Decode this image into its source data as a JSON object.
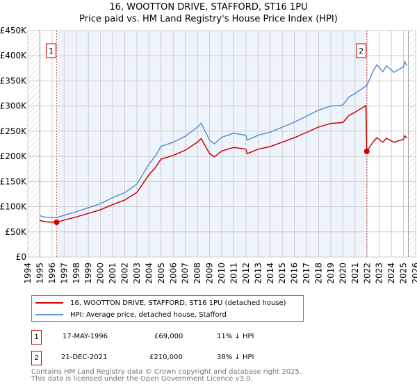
{
  "chart_data": {
    "type": "line",
    "title": "16, WOOTTON DRIVE, STAFFORD, ST16 1PU",
    "subtitle": "Price paid vs. HM Land Registry's House Price Index (HPI)",
    "xlim": [
      1994,
      2026
    ],
    "ylim": [
      0,
      450000
    ],
    "x_ticks": [
      "1994",
      "1995",
      "1996",
      "1997",
      "1998",
      "1999",
      "2000",
      "2001",
      "2002",
      "2003",
      "2004",
      "2005",
      "2006",
      "2007",
      "2008",
      "2009",
      "2010",
      "2011",
      "2012",
      "2013",
      "2014",
      "2015",
      "2016",
      "2017",
      "2018",
      "2019",
      "2020",
      "2021",
      "2022",
      "2023",
      "2024",
      "2025",
      "2026"
    ],
    "y_ticks": [
      {
        "v": 0,
        "l": "£0"
      },
      {
        "v": 50000,
        "l": "£50K"
      },
      {
        "v": 100000,
        "l": "£100K"
      },
      {
        "v": 150000,
        "l": "£150K"
      },
      {
        "v": 200000,
        "l": "£200K"
      },
      {
        "v": 250000,
        "l": "£250K"
      },
      {
        "v": 300000,
        "l": "£300K"
      },
      {
        "v": 350000,
        "l": "£350K"
      },
      {
        "v": 400000,
        "l": "£400K"
      },
      {
        "v": 450000,
        "l": "£450K"
      }
    ],
    "x": [
      1995,
      1995.5,
      1996.38,
      1997,
      1998,
      1999,
      2000,
      2001,
      2002,
      2003,
      2003.5,
      2004,
      2004.5,
      2005,
      2006,
      2007,
      2008,
      2008.3,
      2009,
      2009.4,
      2010,
      2011,
      2012,
      2012.1,
      2013,
      2014,
      2015,
      2016,
      2017,
      2018,
      2019,
      2020,
      2020.5,
      2021,
      2021.9,
      2021.97,
      2022.5,
      2022.8,
      2023.3,
      2023.6,
      2024.2,
      2025,
      2025.1,
      2025.3
    ],
    "series": [
      {
        "name": "16, WOOTTON DRIVE, STAFFORD, ST16 1PU (detached house)",
        "color": "#cc0000",
        "values": [
          72600,
          69900,
          69000,
          73500,
          79700,
          86700,
          93800,
          104400,
          113300,
          128300,
          146000,
          163700,
          177000,
          194700,
          201800,
          212400,
          228300,
          235400,
          205300,
          199100,
          210600,
          217700,
          214200,
          205300,
          214200,
          219500,
          228300,
          237200,
          247800,
          258400,
          265500,
          267300,
          281400,
          287600,
          300900,
          210000,
          229000,
          237000,
          228000,
          236000,
          228000,
          234000,
          241000,
          236000
        ]
      },
      {
        "name": "HPI: Average price, detached house, Stafford",
        "color": "#5b8fd0",
        "values": [
          82000,
          79000,
          78000,
          83000,
          90000,
          98000,
          106000,
          118000,
          128000,
          145000,
          165000,
          185000,
          200000,
          220000,
          228000,
          240000,
          258000,
          266000,
          232000,
          225000,
          238000,
          246000,
          242000,
          232000,
          242000,
          248000,
          258000,
          268000,
          280000,
          292000,
          300000,
          302000,
          318000,
          325000,
          340000,
          340000,
          370000,
          382000,
          368000,
          380000,
          367000,
          378000,
          388000,
          380000
        ]
      }
    ],
    "annotations": [
      {
        "label": "1",
        "x": 1996.38,
        "value": 69000
      },
      {
        "label": "2",
        "x": 2021.97,
        "value": 210000
      }
    ],
    "grid": true,
    "legend_placement": "bottom"
  },
  "legend": {
    "property": "16, WOOTTON DRIVE, STAFFORD, ST16 1PU (detached house)",
    "hpi": "HPI: Average price, detached house, Stafford"
  },
  "transactions": [
    {
      "num": "1",
      "date": "17-MAY-1996",
      "price": "£69,000",
      "hpi": "11% ↓ HPI"
    },
    {
      "num": "2",
      "date": "21-DEC-2021",
      "price": "£210,000",
      "hpi": "38% ↓ HPI"
    }
  ],
  "footer": {
    "line1": "Contains HM Land Registry data © Crown copyright and database right 2025.",
    "line2": "This data is licensed under the Open Government Licence v3.0."
  }
}
